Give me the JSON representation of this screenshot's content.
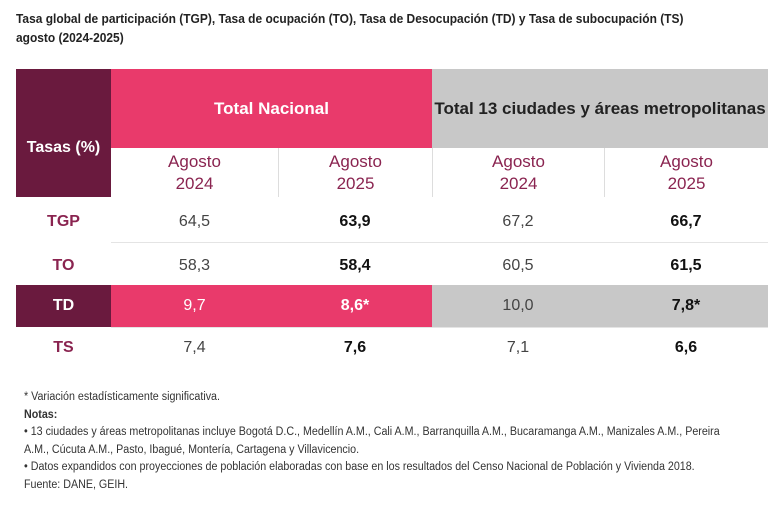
{
  "title": {
    "line1": "Tasa global de participación (TGP), Tasa de ocupación (TO), Tasa de Desocupación (TD) y Tasa de subocupación (TS)",
    "line2": "agosto (2024-2025)"
  },
  "table": {
    "rate_header": "Tasas (%)",
    "group_national": "Total Nacional",
    "group_cities": "Total 13 ciudades y áreas metropolitanas",
    "subheaders": [
      {
        "m": "Agosto",
        "y": "2024"
      },
      {
        "m": "Agosto",
        "y": "2025"
      },
      {
        "m": "Agosto",
        "y": "2024"
      },
      {
        "m": "Agosto",
        "y": "2025"
      }
    ],
    "rows": [
      {
        "label": "TGP",
        "values": [
          "64,5",
          "63,9",
          "67,2",
          "66,7"
        ]
      },
      {
        "label": "TO",
        "values": [
          "58,3",
          "58,4",
          "60,5",
          "61,5"
        ]
      },
      {
        "label": "TD",
        "values": [
          "9,7",
          "8,6*",
          "10,0",
          "7,8*"
        ]
      },
      {
        "label": "TS",
        "values": [
          "7,4",
          "7,6",
          "7,1",
          "6,6"
        ]
      }
    ]
  },
  "notes": {
    "significance": "* Variación estadísticamente significativa.",
    "heading": "Notas:",
    "note1a": "• 13 ciudades y áreas metropolitanas incluye Bogotá D.C., Medellín A.M., Cali A.M., Barranquilla A.M., Bucaramanga A.M., Manizales A.M., Pereira",
    "note1b": "A.M., Cúcuta A.M., Pasto, Ibagué, Montería, Cartagena y Villavicencio.",
    "note2": "• Datos expandidos con proyecciones de población elaboradas con base en los resultados del Censo Nacional de Población y Vivienda 2018.",
    "source": "Fuente: DANE, GEIH."
  },
  "colors": {
    "maroon": "#6a1a3e",
    "pink": "#e93a6b",
    "gray": "#c8c8c8"
  }
}
